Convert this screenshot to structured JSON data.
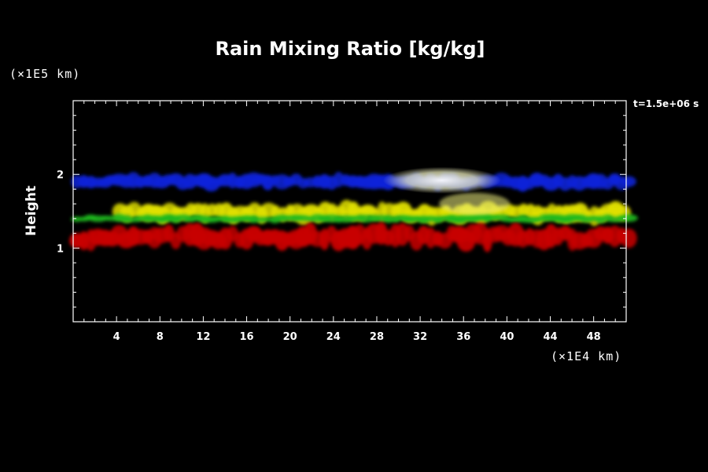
{
  "chart_data": {
    "type": "heatmap",
    "title": "Rain Mixing Ratio [kg/kg]",
    "ylabel": "Height",
    "y_unit": "(×1E5 km)",
    "x_unit": "(×1E4 km)",
    "time_label": "t=1.5e+06 s",
    "xlim": [
      0,
      51
    ],
    "ylim": [
      0,
      3
    ],
    "x_ticks": [
      4,
      8,
      12,
      16,
      20,
      24,
      28,
      32,
      36,
      40,
      44,
      48
    ],
    "y_ticks": [
      1,
      2
    ],
    "layers": [
      {
        "name": "top",
        "color": "#0b23d9",
        "x_range": [
          0,
          51
        ],
        "y_range": [
          1.8,
          2.0
        ]
      },
      {
        "name": "upper-middle",
        "color": "#e0e000",
        "x_range": [
          4,
          51
        ],
        "y_range": [
          1.35,
          1.6
        ]
      },
      {
        "name": "lower-middle",
        "color": "#1db81d",
        "x_range": [
          0,
          51
        ],
        "y_range": [
          1.35,
          1.45
        ]
      },
      {
        "name": "bottom",
        "color": "#c80000",
        "x_range": [
          0,
          51
        ],
        "y_range": [
          1.0,
          1.3
        ]
      }
    ]
  }
}
